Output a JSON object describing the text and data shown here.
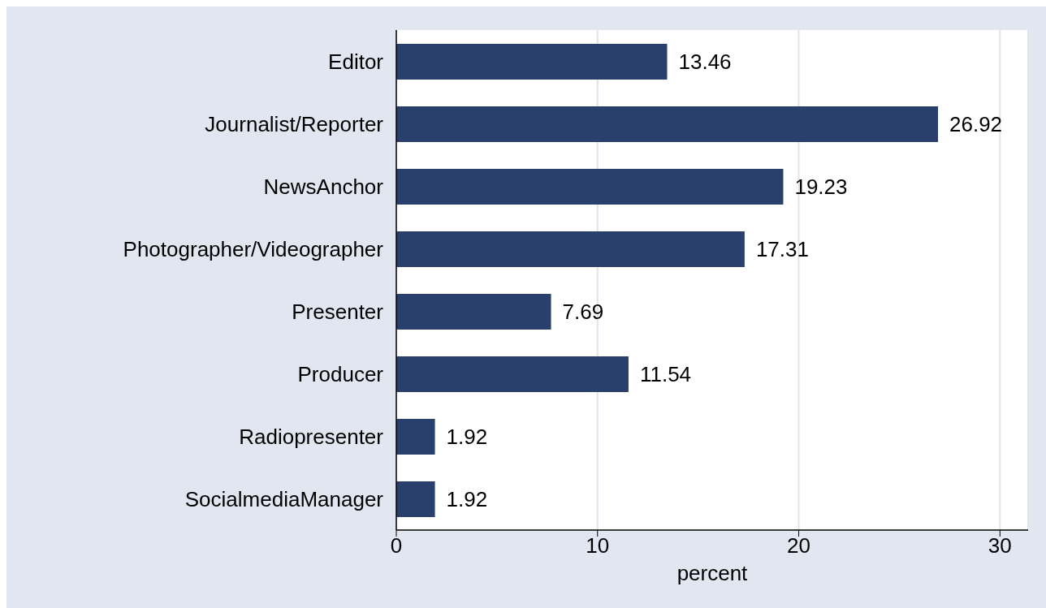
{
  "chart_data": {
    "type": "bar",
    "orientation": "horizontal",
    "xlabel": "percent",
    "categories": [
      "Editor",
      "Journalist/Reporter",
      "NewsAnchor",
      "Photographer/Videographer",
      "Presenter",
      "Producer",
      "Radiopresenter",
      "SocialmediaManager"
    ],
    "values": [
      13.46,
      26.92,
      19.23,
      17.31,
      7.69,
      11.54,
      1.92,
      1.92
    ],
    "color": "#2a406c",
    "xlim": [
      0,
      31.4
    ],
    "xticks": [
      0,
      10,
      20,
      30
    ],
    "grid": "x",
    "data_labels": true,
    "legend": false
  }
}
